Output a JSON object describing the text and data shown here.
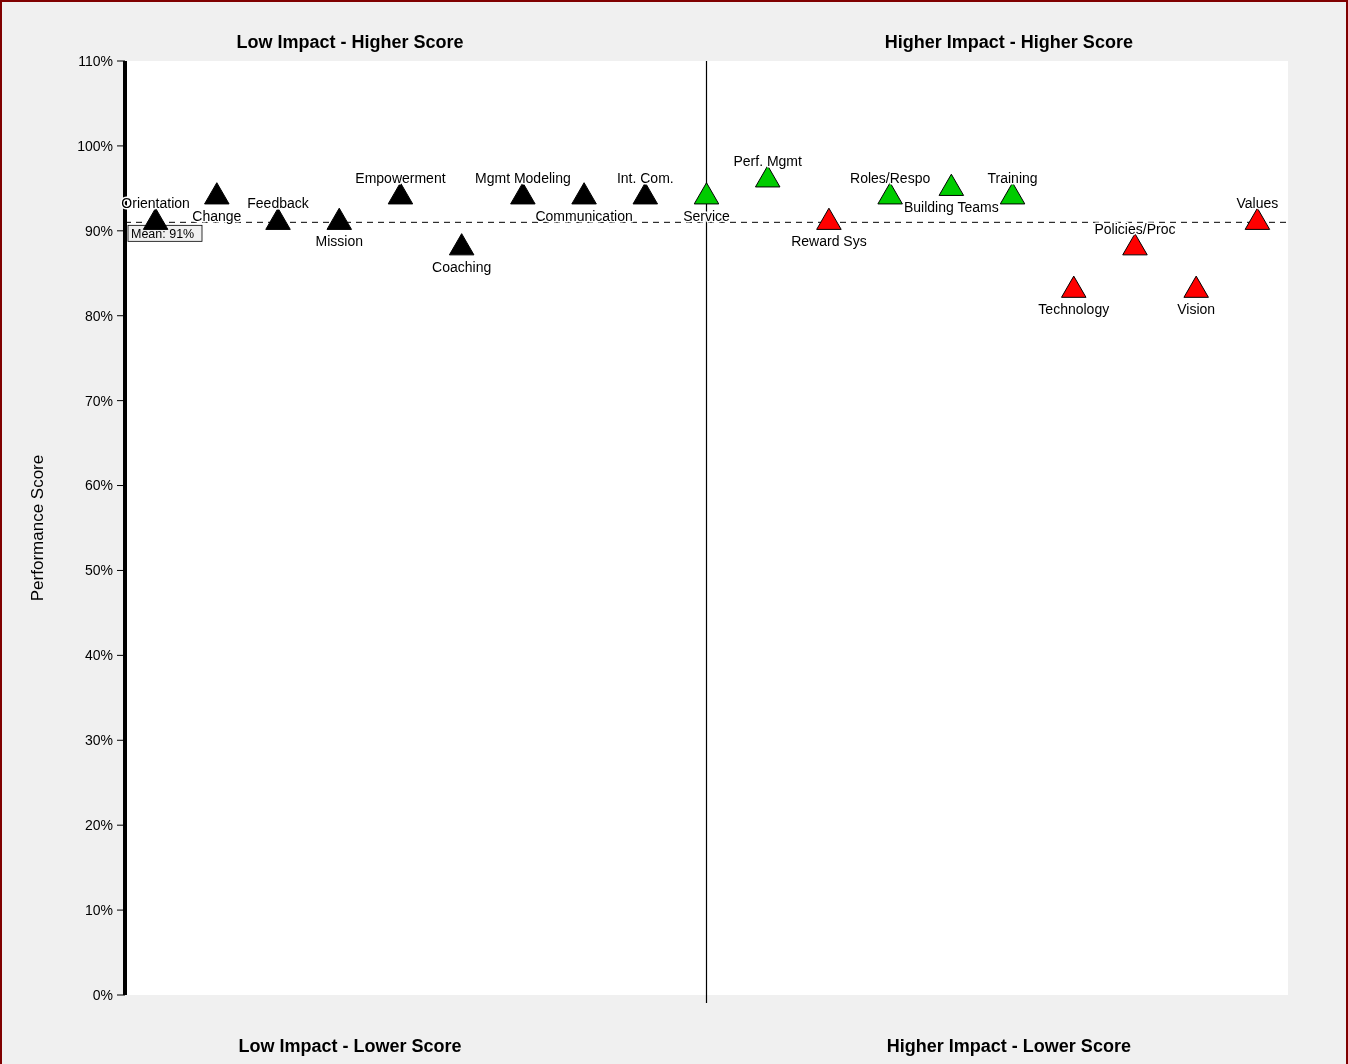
{
  "chart_data": {
    "type": "scatter",
    "ylabel": "Performance Score",
    "categories": [
      null,
      null,
      null,
      null,
      null,
      null,
      null,
      null,
      null,
      null,
      null,
      null,
      null,
      null,
      null,
      null,
      null,
      null,
      null
    ],
    "ylim": [
      0,
      110
    ],
    "yticks": [
      {
        "value": 0,
        "label": "0%"
      },
      {
        "value": 10,
        "label": "10%"
      },
      {
        "value": 20,
        "label": "20%"
      },
      {
        "value": 30,
        "label": "30%"
      },
      {
        "value": 40,
        "label": "40%"
      },
      {
        "value": 50,
        "label": "50%"
      },
      {
        "value": 60,
        "label": "60%"
      },
      {
        "value": 70,
        "label": "70%"
      },
      {
        "value": 80,
        "label": "80%"
      },
      {
        "value": 90,
        "label": "90%"
      },
      {
        "value": 100,
        "label": "100%"
      },
      {
        "value": 110,
        "label": "110%"
      }
    ],
    "tick_labels": "y",
    "marker": "triangle",
    "series": [
      {
        "color": "#000000",
        "values": [
          91,
          94,
          91,
          91,
          94,
          88,
          94,
          94,
          94,
          null,
          null,
          null,
          null,
          null,
          null,
          null,
          null,
          null,
          null
        ]
      },
      {
        "color": "#00cc00",
        "values": [
          null,
          null,
          null,
          null,
          null,
          null,
          null,
          null,
          null,
          94,
          96,
          null,
          94,
          95,
          94,
          null,
          null,
          null,
          null
        ]
      },
      {
        "color": "#ff0000",
        "values": [
          null,
          null,
          null,
          null,
          null,
          null,
          null,
          null,
          null,
          null,
          null,
          91,
          null,
          null,
          null,
          83,
          88,
          83,
          91
        ]
      }
    ],
    "ref_lines": [
      {
        "axis": "y",
        "value": 91,
        "label": "Mean: 91%",
        "line_style": "dashed",
        "color": "#000000"
      }
    ],
    "annotations": [
      "Low Impact - Higher Score",
      "Higher Impact - Higher Score",
      "Low Impact - Lower Score",
      "Higher Impact - Lower Score",
      {
        "text": "Orientation",
        "y": 91
      },
      {
        "text": "Change",
        "y": 94
      },
      {
        "text": "Feedback",
        "y": 91
      },
      {
        "text": "Mission",
        "y": 91
      },
      {
        "text": "Empowerment",
        "y": 94
      },
      {
        "text": "Coaching",
        "y": 88
      },
      {
        "text": "Mgmt Modeling",
        "y": 94
      },
      {
        "text": "Communication",
        "y": 94
      },
      {
        "text": "Int. Com.",
        "y": 94
      },
      {
        "text": "Service",
        "y": 94
      },
      {
        "text": "Perf. Mgmt",
        "y": 96
      },
      {
        "text": "Reward Sys",
        "y": 91
      },
      {
        "text": "Roles/Respo",
        "y": 94
      },
      {
        "text": "Building Teams",
        "y": 95
      },
      {
        "text": "Training",
        "y": 94
      },
      {
        "text": "Technology",
        "y": 83
      },
      {
        "text": "Policies/Proc",
        "y": 88
      },
      {
        "text": "Vision",
        "y": 83
      },
      {
        "text": "Values",
        "y": 91
      }
    ]
  }
}
